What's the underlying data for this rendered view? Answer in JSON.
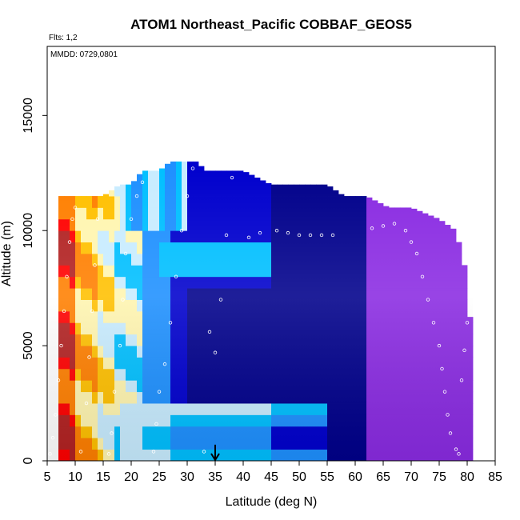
{
  "chart_data": {
    "type": "heatmap",
    "title": "ATOM1 Northeast_Pacific COBBAF_GEOS5",
    "flights_note": "Flts: 1,2",
    "dates_note": "MMDD: 0729,0801",
    "xlabel": "Latitude (deg N)",
    "ylabel": "Altitude (m)",
    "xlim": [
      5,
      85
    ],
    "ylim": [
      0,
      18000
    ],
    "x_ticks": [
      5,
      10,
      15,
      20,
      25,
      30,
      35,
      40,
      45,
      50,
      55,
      60,
      65,
      70,
      75,
      80,
      85
    ],
    "y_ticks": [
      0,
      5000,
      10000,
      15000
    ],
    "colormap": [
      "#b22222",
      "#ff0000",
      "#ff7f00",
      "#ffc000",
      "#fff5b0",
      "#c8ecff",
      "#00bfff",
      "#1e90ff",
      "#0000cd",
      "#00008b",
      "#4b0082",
      "#8a2be2"
    ],
    "grid": false,
    "arrow_marker": {
      "x": 35,
      "direction": "down"
    },
    "profile_top_altitude": [
      [
        7,
        11500
      ],
      [
        10,
        11500
      ],
      [
        15,
        11500
      ],
      [
        18,
        12000
      ],
      [
        20,
        12000
      ],
      [
        22,
        12600
      ],
      [
        25,
        12600
      ],
      [
        27,
        13000
      ],
      [
        32,
        13000
      ],
      [
        33,
        12600
      ],
      [
        40,
        12600
      ],
      [
        45,
        12000
      ],
      [
        55,
        12000
      ],
      [
        58,
        11500
      ],
      [
        62,
        11500
      ],
      [
        66,
        11000
      ],
      [
        70,
        11000
      ],
      [
        75,
        10500
      ],
      [
        78,
        10000
      ],
      [
        79,
        9000
      ],
      [
        80,
        8000
      ],
      [
        80,
        7000
      ],
      [
        81,
        5500
      ],
      [
        81,
        0
      ]
    ],
    "field_bands": [
      {
        "lat": [
          5,
          10
        ],
        "alt": [
          0,
          11500
        ],
        "level": 1
      },
      {
        "lat": [
          10,
          14
        ],
        "alt": [
          0,
          11500
        ],
        "level": 3
      },
      {
        "lat": [
          14,
          17
        ],
        "alt": [
          0,
          11500
        ],
        "level": 4
      },
      {
        "lat": [
          17,
          22
        ],
        "alt": [
          0,
          12000
        ],
        "level": 5
      },
      {
        "lat": [
          22,
          27
        ],
        "alt": [
          0,
          12600
        ],
        "level": 7
      },
      {
        "lat": [
          27,
          45
        ],
        "alt": [
          0,
          13000
        ],
        "level": 8
      },
      {
        "lat": [
          45,
          62
        ],
        "alt": [
          0,
          12000
        ],
        "level": 9
      },
      {
        "lat": [
          62,
          81
        ],
        "alt": [
          0,
          11500
        ],
        "level": 11
      }
    ],
    "observations": [
      [
        5.5,
        300
      ],
      [
        6,
        1000
      ],
      [
        6.5,
        2000
      ],
      [
        7,
        3500
      ],
      [
        7.5,
        5000
      ],
      [
        8,
        6500
      ],
      [
        8.5,
        8000
      ],
      [
        9,
        9500
      ],
      [
        9.5,
        10500
      ],
      [
        10,
        11000
      ],
      [
        11,
        400
      ],
      [
        12,
        2500
      ],
      [
        12.5,
        4500
      ],
      [
        13,
        6500
      ],
      [
        13.5,
        8500
      ],
      [
        14,
        10500
      ],
      [
        16,
        300
      ],
      [
        16.5,
        1200
      ],
      [
        17,
        3000
      ],
      [
        18,
        5000
      ],
      [
        18.5,
        7000
      ],
      [
        19,
        9000
      ],
      [
        20,
        10500
      ],
      [
        21,
        11500
      ],
      [
        22,
        12100
      ],
      [
        24,
        400
      ],
      [
        24.5,
        1600
      ],
      [
        25,
        3000
      ],
      [
        26,
        4200
      ],
      [
        27,
        6000
      ],
      [
        28,
        8000
      ],
      [
        29,
        10000
      ],
      [
        30,
        11500
      ],
      [
        31,
        12700
      ],
      [
        33,
        400
      ],
      [
        34,
        5600
      ],
      [
        35,
        4700
      ],
      [
        36,
        7000
      ],
      [
        37,
        9800
      ],
      [
        38,
        12300
      ],
      [
        41,
        9700
      ],
      [
        43,
        9900
      ],
      [
        46,
        10000
      ],
      [
        48,
        9900
      ],
      [
        50,
        9800
      ],
      [
        52,
        9800
      ],
      [
        54,
        9800
      ],
      [
        56,
        9800
      ],
      [
        63,
        10100
      ],
      [
        65,
        10200
      ],
      [
        67,
        10300
      ],
      [
        69,
        10000
      ],
      [
        70,
        9500
      ],
      [
        71,
        9000
      ],
      [
        72,
        8000
      ],
      [
        73,
        7000
      ],
      [
        74,
        6000
      ],
      [
        75,
        5000
      ],
      [
        75.5,
        4000
      ],
      [
        76,
        3000
      ],
      [
        76.5,
        2000
      ],
      [
        77,
        1200
      ],
      [
        78,
        500
      ],
      [
        78.5,
        300
      ],
      [
        79,
        3500
      ],
      [
        79.5,
        4800
      ],
      [
        80,
        6000
      ]
    ]
  }
}
